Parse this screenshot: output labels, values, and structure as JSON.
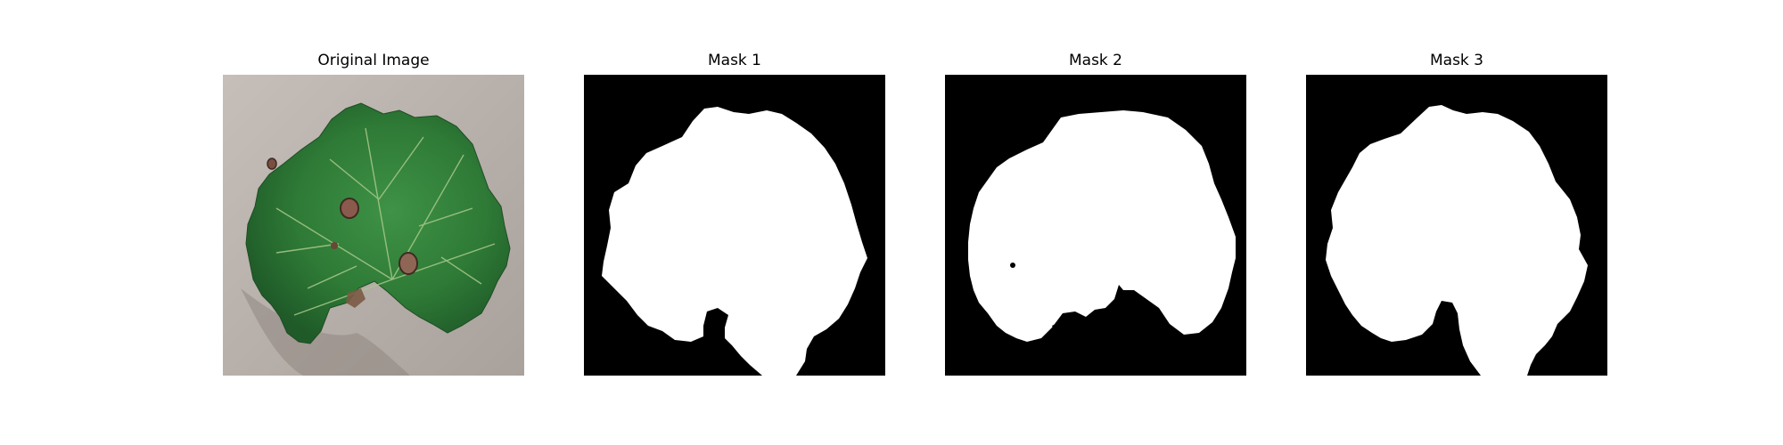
{
  "panels": [
    {
      "title": "Original Image"
    },
    {
      "title": "Mask 1"
    },
    {
      "title": "Mask 2"
    },
    {
      "title": "Mask 3"
    }
  ],
  "colors": {
    "background": "#ffffff",
    "mask_background": "#000000",
    "mask_foreground": "#ffffff",
    "leaf_green": "#2f7a38",
    "ground": "#b9b1aa"
  }
}
